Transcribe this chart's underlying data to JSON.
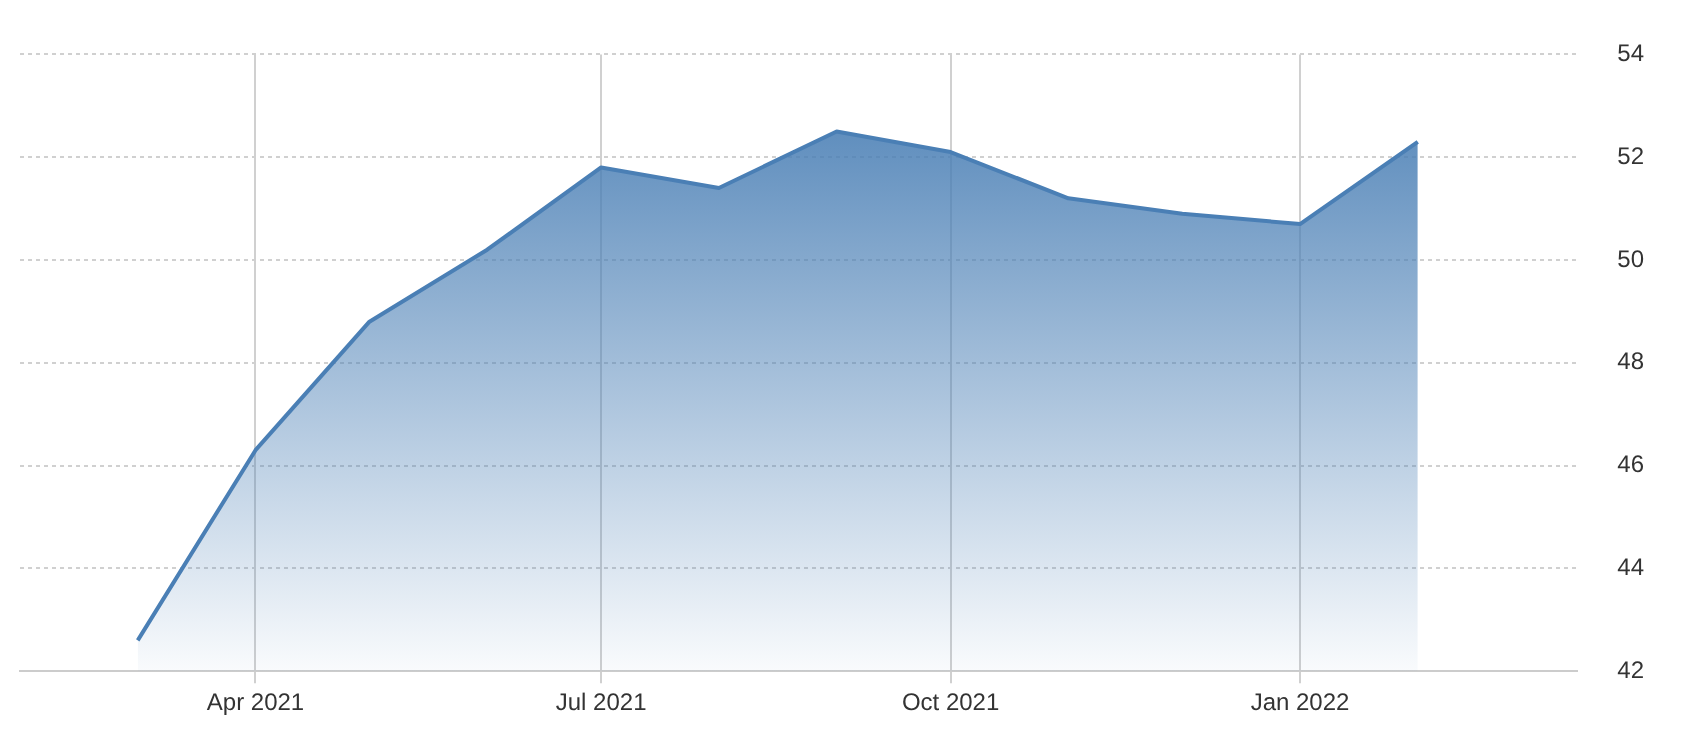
{
  "chart_data": {
    "type": "area",
    "x": [
      "2021-03-01",
      "2021-04-01",
      "2021-05-01",
      "2021-06-01",
      "2021-07-01",
      "2021-08-01",
      "2021-09-01",
      "2021-10-01",
      "2021-11-01",
      "2021-12-01",
      "2022-01-01",
      "2022-02-01"
    ],
    "series": [
      {
        "color": "#4a7fb5",
        "values": [
          42.6,
          46.3,
          48.8,
          50.2,
          51.8,
          51.4,
          52.5,
          52.1,
          51.2,
          50.9,
          50.7,
          52.3
        ]
      }
    ],
    "xlim": [
      "2021-01-29",
      "2022-03-15"
    ],
    "xticks": [
      {
        "value": "2021-04-01",
        "label": "Apr 2021"
      },
      {
        "value": "2021-07-01",
        "label": "Jul 2021"
      },
      {
        "value": "2021-10-01",
        "label": "Oct 2021"
      },
      {
        "value": "2022-01-01",
        "label": "Jan 2022"
      }
    ],
    "ylim": [
      42,
      54
    ],
    "yticks": [
      42,
      44,
      46,
      48,
      50,
      52,
      54
    ],
    "grid": true,
    "legend": false,
    "marker": "none",
    "line_style": "solid"
  }
}
